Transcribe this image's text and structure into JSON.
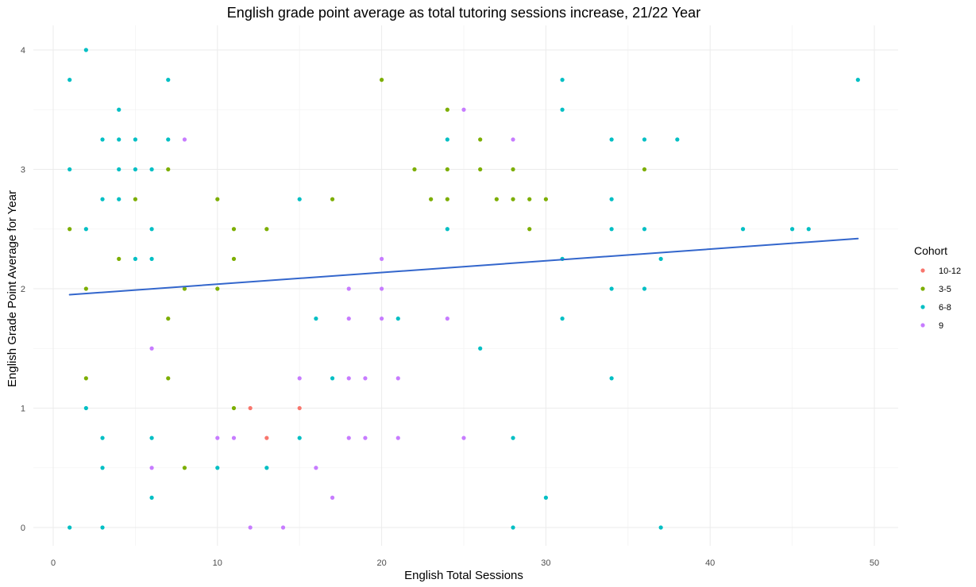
{
  "chart_data": {
    "type": "scatter",
    "title": "English grade point average as total tutoring sessions increase, 21/22 Year",
    "xlabel": "English Total Sessions",
    "ylabel": "English Grade Point Average for Year",
    "xlim": [
      0,
      50
    ],
    "ylim": [
      0,
      4
    ],
    "x_ticks": [
      0,
      10,
      20,
      30,
      40,
      50
    ],
    "y_ticks": [
      0,
      1,
      2,
      3,
      4
    ],
    "grid": true,
    "legend_position": "right",
    "legend_title": "Cohort",
    "series": [
      {
        "name": "10-12",
        "color": "#F8766D",
        "points": [
          [
            12,
            1.0
          ],
          [
            13,
            0.75
          ],
          [
            15,
            1.0
          ]
        ]
      },
      {
        "name": "3-5",
        "color": "#7CAE00",
        "points": [
          [
            1,
            2.5
          ],
          [
            2,
            2.0
          ],
          [
            2,
            1.25
          ],
          [
            4,
            2.25
          ],
          [
            5,
            2.75
          ],
          [
            7,
            3.0
          ],
          [
            7,
            1.75
          ],
          [
            7,
            1.25
          ],
          [
            8,
            2.0
          ],
          [
            8,
            0.5
          ],
          [
            10,
            2.75
          ],
          [
            10,
            2.0
          ],
          [
            11,
            2.5
          ],
          [
            11,
            2.25
          ],
          [
            11,
            1.0
          ],
          [
            13,
            2.5
          ],
          [
            17,
            2.75
          ],
          [
            20,
            3.75
          ],
          [
            22,
            3.0
          ],
          [
            23,
            2.75
          ],
          [
            24,
            3.5
          ],
          [
            24,
            3.0
          ],
          [
            24,
            2.75
          ],
          [
            26,
            3.25
          ],
          [
            26,
            3.0
          ],
          [
            27,
            2.75
          ],
          [
            28,
            3.0
          ],
          [
            28,
            2.75
          ],
          [
            29,
            2.75
          ],
          [
            29,
            2.5
          ],
          [
            30,
            2.75
          ],
          [
            36,
            3.0
          ]
        ]
      },
      {
        "name": "6-8",
        "color": "#00BFC4",
        "points": [
          [
            1,
            3.75
          ],
          [
            1,
            3.0
          ],
          [
            1,
            0.0
          ],
          [
            2,
            4.0
          ],
          [
            2,
            2.5
          ],
          [
            2,
            1.0
          ],
          [
            3,
            3.25
          ],
          [
            3,
            2.75
          ],
          [
            3,
            0.75
          ],
          [
            3,
            0.5
          ],
          [
            3,
            0.0
          ],
          [
            4,
            3.5
          ],
          [
            4,
            3.25
          ],
          [
            4,
            3.0
          ],
          [
            4,
            2.75
          ],
          [
            5,
            3.25
          ],
          [
            5,
            3.0
          ],
          [
            5,
            2.25
          ],
          [
            6,
            3.0
          ],
          [
            6,
            2.5
          ],
          [
            6,
            2.25
          ],
          [
            6,
            0.75
          ],
          [
            6,
            0.25
          ],
          [
            7,
            3.75
          ],
          [
            7,
            3.25
          ],
          [
            10,
            0.5
          ],
          [
            13,
            0.5
          ],
          [
            15,
            2.75
          ],
          [
            15,
            0.75
          ],
          [
            16,
            1.75
          ],
          [
            17,
            1.25
          ],
          [
            21,
            1.75
          ],
          [
            24,
            3.25
          ],
          [
            24,
            2.5
          ],
          [
            26,
            1.5
          ],
          [
            28,
            0.75
          ],
          [
            28,
            0.0
          ],
          [
            30,
            0.25
          ],
          [
            31,
            3.75
          ],
          [
            31,
            3.5
          ],
          [
            31,
            2.25
          ],
          [
            31,
            1.75
          ],
          [
            34,
            3.25
          ],
          [
            34,
            2.75
          ],
          [
            34,
            2.5
          ],
          [
            34,
            2.0
          ],
          [
            34,
            1.25
          ],
          [
            36,
            3.25
          ],
          [
            36,
            2.5
          ],
          [
            36,
            2.0
          ],
          [
            37,
            2.25
          ],
          [
            37,
            0.0
          ],
          [
            38,
            3.25
          ],
          [
            42,
            2.5
          ],
          [
            45,
            2.5
          ],
          [
            46,
            2.5
          ],
          [
            49,
            3.75
          ]
        ]
      },
      {
        "name": "9",
        "color": "#C77CFF",
        "points": [
          [
            6,
            1.5
          ],
          [
            6,
            0.5
          ],
          [
            8,
            3.25
          ],
          [
            10,
            0.75
          ],
          [
            11,
            0.75
          ],
          [
            12,
            0.0
          ],
          [
            14,
            0.0
          ],
          [
            15,
            1.25
          ],
          [
            16,
            0.5
          ],
          [
            17,
            0.25
          ],
          [
            18,
            2.0
          ],
          [
            18,
            1.75
          ],
          [
            18,
            1.25
          ],
          [
            18,
            0.75
          ],
          [
            19,
            1.25
          ],
          [
            19,
            0.75
          ],
          [
            20,
            2.25
          ],
          [
            20,
            2.0
          ],
          [
            20,
            1.75
          ],
          [
            21,
            1.25
          ],
          [
            21,
            0.75
          ],
          [
            24,
            1.75
          ],
          [
            25,
            3.5
          ],
          [
            25,
            0.75
          ],
          [
            28,
            3.25
          ]
        ]
      }
    ],
    "trend_line": {
      "color": "#3366CC",
      "x": [
        1,
        49
      ],
      "y": [
        1.95,
        2.42
      ]
    }
  }
}
